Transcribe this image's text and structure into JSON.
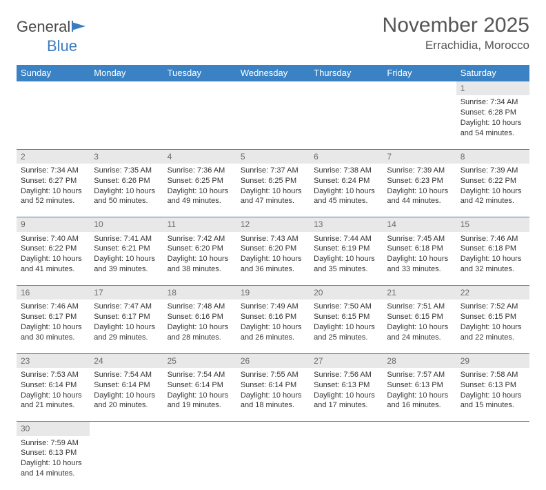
{
  "brand": {
    "part1": "General",
    "part2": "Blue"
  },
  "title": "November 2025",
  "location": "Errachidia, Morocco",
  "dayHeaders": [
    "Sunday",
    "Monday",
    "Tuesday",
    "Wednesday",
    "Thursday",
    "Friday",
    "Saturday"
  ],
  "colors": {
    "headerBg": "#3b82c4",
    "dayBg": "#e8e8e8",
    "border": "#3b82c4"
  },
  "weeks": [
    [
      null,
      null,
      null,
      null,
      null,
      null,
      {
        "n": "1",
        "sr": "7:34 AM",
        "ss": "6:28 PM",
        "dl": "10 hours and 54 minutes."
      }
    ],
    [
      {
        "n": "2",
        "sr": "7:34 AM",
        "ss": "6:27 PM",
        "dl": "10 hours and 52 minutes."
      },
      {
        "n": "3",
        "sr": "7:35 AM",
        "ss": "6:26 PM",
        "dl": "10 hours and 50 minutes."
      },
      {
        "n": "4",
        "sr": "7:36 AM",
        "ss": "6:25 PM",
        "dl": "10 hours and 49 minutes."
      },
      {
        "n": "5",
        "sr": "7:37 AM",
        "ss": "6:25 PM",
        "dl": "10 hours and 47 minutes."
      },
      {
        "n": "6",
        "sr": "7:38 AM",
        "ss": "6:24 PM",
        "dl": "10 hours and 45 minutes."
      },
      {
        "n": "7",
        "sr": "7:39 AM",
        "ss": "6:23 PM",
        "dl": "10 hours and 44 minutes."
      },
      {
        "n": "8",
        "sr": "7:39 AM",
        "ss": "6:22 PM",
        "dl": "10 hours and 42 minutes."
      }
    ],
    [
      {
        "n": "9",
        "sr": "7:40 AM",
        "ss": "6:22 PM",
        "dl": "10 hours and 41 minutes."
      },
      {
        "n": "10",
        "sr": "7:41 AM",
        "ss": "6:21 PM",
        "dl": "10 hours and 39 minutes."
      },
      {
        "n": "11",
        "sr": "7:42 AM",
        "ss": "6:20 PM",
        "dl": "10 hours and 38 minutes."
      },
      {
        "n": "12",
        "sr": "7:43 AM",
        "ss": "6:20 PM",
        "dl": "10 hours and 36 minutes."
      },
      {
        "n": "13",
        "sr": "7:44 AM",
        "ss": "6:19 PM",
        "dl": "10 hours and 35 minutes."
      },
      {
        "n": "14",
        "sr": "7:45 AM",
        "ss": "6:18 PM",
        "dl": "10 hours and 33 minutes."
      },
      {
        "n": "15",
        "sr": "7:46 AM",
        "ss": "6:18 PM",
        "dl": "10 hours and 32 minutes."
      }
    ],
    [
      {
        "n": "16",
        "sr": "7:46 AM",
        "ss": "6:17 PM",
        "dl": "10 hours and 30 minutes."
      },
      {
        "n": "17",
        "sr": "7:47 AM",
        "ss": "6:17 PM",
        "dl": "10 hours and 29 minutes."
      },
      {
        "n": "18",
        "sr": "7:48 AM",
        "ss": "6:16 PM",
        "dl": "10 hours and 28 minutes."
      },
      {
        "n": "19",
        "sr": "7:49 AM",
        "ss": "6:16 PM",
        "dl": "10 hours and 26 minutes."
      },
      {
        "n": "20",
        "sr": "7:50 AM",
        "ss": "6:15 PM",
        "dl": "10 hours and 25 minutes."
      },
      {
        "n": "21",
        "sr": "7:51 AM",
        "ss": "6:15 PM",
        "dl": "10 hours and 24 minutes."
      },
      {
        "n": "22",
        "sr": "7:52 AM",
        "ss": "6:15 PM",
        "dl": "10 hours and 22 minutes."
      }
    ],
    [
      {
        "n": "23",
        "sr": "7:53 AM",
        "ss": "6:14 PM",
        "dl": "10 hours and 21 minutes."
      },
      {
        "n": "24",
        "sr": "7:54 AM",
        "ss": "6:14 PM",
        "dl": "10 hours and 20 minutes."
      },
      {
        "n": "25",
        "sr": "7:54 AM",
        "ss": "6:14 PM",
        "dl": "10 hours and 19 minutes."
      },
      {
        "n": "26",
        "sr": "7:55 AM",
        "ss": "6:14 PM",
        "dl": "10 hours and 18 minutes."
      },
      {
        "n": "27",
        "sr": "7:56 AM",
        "ss": "6:13 PM",
        "dl": "10 hours and 17 minutes."
      },
      {
        "n": "28",
        "sr": "7:57 AM",
        "ss": "6:13 PM",
        "dl": "10 hours and 16 minutes."
      },
      {
        "n": "29",
        "sr": "7:58 AM",
        "ss": "6:13 PM",
        "dl": "10 hours and 15 minutes."
      }
    ],
    [
      {
        "n": "30",
        "sr": "7:59 AM",
        "ss": "6:13 PM",
        "dl": "10 hours and 14 minutes."
      },
      null,
      null,
      null,
      null,
      null,
      null
    ]
  ],
  "labels": {
    "sunrise": "Sunrise:",
    "sunset": "Sunset:",
    "daylight": "Daylight:"
  }
}
